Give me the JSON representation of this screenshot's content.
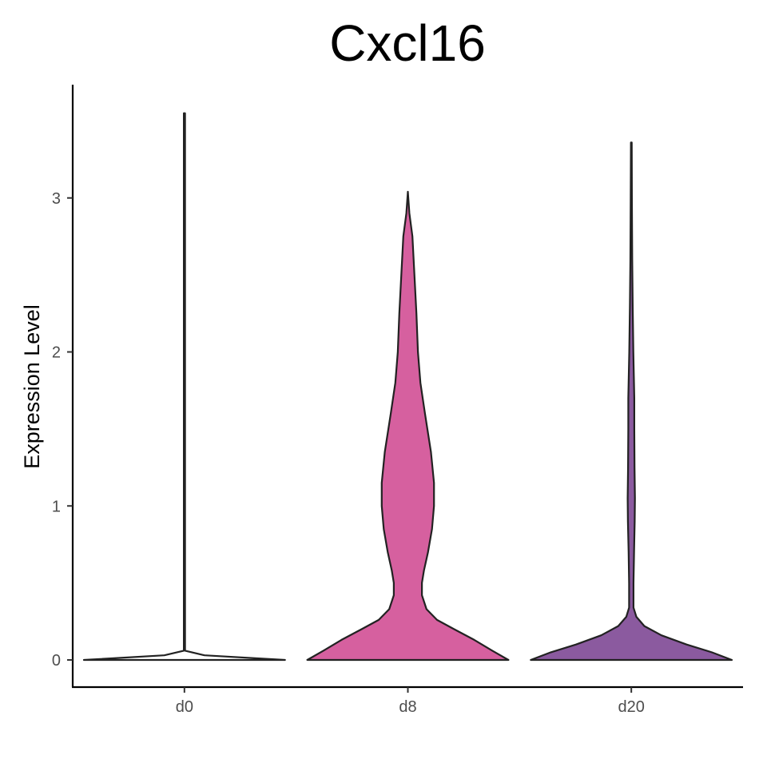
{
  "chart_data": {
    "type": "violin",
    "title": "Cxcl16",
    "xlabel": "",
    "ylabel": "Expression Level",
    "categories": [
      "d0",
      "d8",
      "d20"
    ],
    "ylim": [
      -0.18,
      3.72
    ],
    "yticks": [
      0,
      1,
      2,
      3
    ],
    "grid": false,
    "legend": "none",
    "series": [
      {
        "category": "d0",
        "color": "#ffffff",
        "max": 3.55,
        "profile": [
          [
            0,
            1.0
          ],
          [
            0.03,
            0.2
          ],
          [
            0.06,
            0.006
          ],
          [
            0.5,
            0.006
          ],
          [
            1.0,
            0.006
          ],
          [
            2.0,
            0.006
          ],
          [
            3.0,
            0.006
          ],
          [
            3.55,
            0.006
          ]
        ]
      },
      {
        "category": "d8",
        "color": "#d6609f",
        "max": 3.04,
        "profile": [
          [
            0,
            1.0
          ],
          [
            0.06,
            0.84
          ],
          [
            0.13,
            0.66
          ],
          [
            0.2,
            0.46
          ],
          [
            0.26,
            0.29
          ],
          [
            0.33,
            0.185
          ],
          [
            0.42,
            0.14
          ],
          [
            0.5,
            0.14
          ],
          [
            0.58,
            0.16
          ],
          [
            0.7,
            0.2
          ],
          [
            0.85,
            0.24
          ],
          [
            1.0,
            0.26
          ],
          [
            1.15,
            0.26
          ],
          [
            1.35,
            0.23
          ],
          [
            1.6,
            0.17
          ],
          [
            1.8,
            0.125
          ],
          [
            2.0,
            0.1
          ],
          [
            2.25,
            0.085
          ],
          [
            2.5,
            0.065
          ],
          [
            2.75,
            0.045
          ],
          [
            2.9,
            0.015
          ],
          [
            3.04,
            0.0
          ]
        ]
      },
      {
        "category": "d20",
        "color": "#8b5a9f",
        "max": 3.36,
        "profile": [
          [
            0,
            1.0
          ],
          [
            0.05,
            0.8
          ],
          [
            0.1,
            0.55
          ],
          [
            0.16,
            0.3
          ],
          [
            0.22,
            0.13
          ],
          [
            0.28,
            0.05
          ],
          [
            0.34,
            0.022
          ],
          [
            0.5,
            0.022
          ],
          [
            0.7,
            0.027
          ],
          [
            0.9,
            0.034
          ],
          [
            1.05,
            0.036
          ],
          [
            1.25,
            0.032
          ],
          [
            1.5,
            0.03
          ],
          [
            1.7,
            0.03
          ],
          [
            1.85,
            0.025
          ],
          [
            2.0,
            0.02
          ],
          [
            2.3,
            0.014
          ],
          [
            2.6,
            0.009
          ],
          [
            3.0,
            0.006
          ],
          [
            3.36,
            0.004
          ]
        ]
      }
    ]
  }
}
